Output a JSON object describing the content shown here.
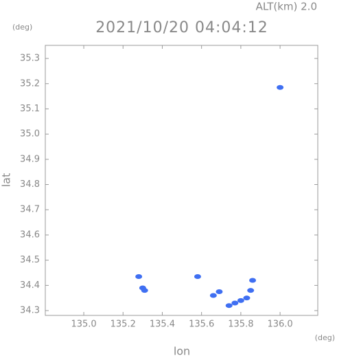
{
  "chart_data": {
    "type": "scatter",
    "title": "2021/10/20 04:04:12",
    "annotations": [
      "ALT(km) 2.0",
      "(deg)",
      "(deg)"
    ],
    "x_label": "lon",
    "y_label": "lat",
    "x": [
      135.28,
      135.3,
      135.31,
      135.58,
      135.66,
      135.69,
      135.74,
      135.77,
      135.8,
      135.83,
      135.85,
      135.86,
      136.0
    ],
    "values": [
      34.435,
      34.39,
      34.38,
      34.435,
      34.36,
      34.375,
      34.32,
      34.33,
      34.34,
      34.35,
      34.38,
      34.42,
      35.185
    ],
    "color": "#3f6ff2",
    "xlim": [
      134.804,
      136.192
    ],
    "ylim": [
      34.281,
      35.352
    ],
    "xticks": [
      {
        "value": 135.0,
        "label": "135.0"
      },
      135.2,
      135.4,
      135.6,
      135.8,
      {
        "value": 136.0,
        "label": "136.0"
      }
    ],
    "yticks": [
      34.3,
      34.4,
      34.5,
      34.6,
      34.7,
      34.8,
      34.9,
      {
        "value": 35.0,
        "label": "35.0"
      },
      35.1,
      35.2,
      35.3
    ]
  }
}
